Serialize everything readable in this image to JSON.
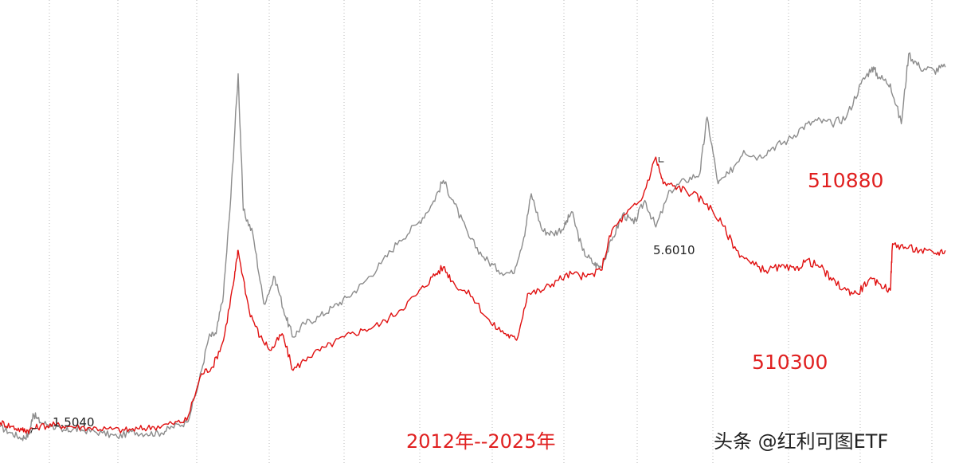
{
  "chart_data": {
    "type": "line",
    "x_range": [
      "2012",
      "2025"
    ],
    "grid": {
      "vertical_dotted": true,
      "horizontal": false
    },
    "series": [
      {
        "name": "510880",
        "color": "#8c8c8c",
        "points": [
          [
            2012.0,
            1.55
          ],
          [
            2012.15,
            1.46
          ],
          [
            2012.3,
            1.38
          ],
          [
            2012.4,
            1.44
          ],
          [
            2012.45,
            1.75
          ],
          [
            2012.55,
            1.62
          ],
          [
            2012.7,
            1.58
          ],
          [
            2012.85,
            1.48
          ],
          [
            2013.0,
            1.52
          ],
          [
            2013.15,
            1.5
          ],
          [
            2013.4,
            1.46
          ],
          [
            2013.6,
            1.4
          ],
          [
            2013.8,
            1.48
          ],
          [
            2014.0,
            1.45
          ],
          [
            2014.2,
            1.46
          ],
          [
            2014.35,
            1.55
          ],
          [
            2014.55,
            1.62
          ],
          [
            2014.7,
            2.15
          ],
          [
            2014.85,
            2.9
          ],
          [
            2014.95,
            2.95
          ],
          [
            2015.05,
            3.55
          ],
          [
            2015.15,
            5.0
          ],
          [
            2015.25,
            6.85
          ],
          [
            2015.32,
            4.8
          ],
          [
            2015.45,
            4.45
          ],
          [
            2015.6,
            3.4
          ],
          [
            2015.75,
            3.8
          ],
          [
            2015.9,
            3.2
          ],
          [
            2016.0,
            2.9
          ],
          [
            2016.15,
            3.1
          ],
          [
            2016.35,
            3.2
          ],
          [
            2016.55,
            3.35
          ],
          [
            2016.75,
            3.5
          ],
          [
            2016.95,
            3.7
          ],
          [
            2017.2,
            4.0
          ],
          [
            2017.45,
            4.35
          ],
          [
            2017.7,
            4.6
          ],
          [
            2017.9,
            4.9
          ],
          [
            2018.05,
            5.25
          ],
          [
            2018.2,
            4.9
          ],
          [
            2018.4,
            4.4
          ],
          [
            2018.6,
            4.1
          ],
          [
            2018.8,
            3.9
          ],
          [
            2019.0,
            3.85
          ],
          [
            2019.15,
            4.4
          ],
          [
            2019.25,
            5.05
          ],
          [
            2019.4,
            4.5
          ],
          [
            2019.55,
            4.45
          ],
          [
            2019.7,
            4.55
          ],
          [
            2019.8,
            4.78
          ],
          [
            2019.95,
            4.2
          ],
          [
            2020.1,
            4.0
          ],
          [
            2020.2,
            3.95
          ],
          [
            2020.35,
            4.35
          ],
          [
            2020.5,
            4.75
          ],
          [
            2020.65,
            4.6
          ],
          [
            2020.8,
            4.95
          ],
          [
            2020.95,
            4.55
          ],
          [
            2021.15,
            5.1
          ],
          [
            2021.35,
            5.25
          ],
          [
            2021.55,
            5.35
          ],
          [
            2021.65,
            6.2
          ],
          [
            2021.8,
            5.2
          ],
          [
            2021.95,
            5.35
          ],
          [
            2022.15,
            5.7
          ],
          [
            2022.35,
            5.6
          ],
          [
            2022.55,
            5.75
          ],
          [
            2022.75,
            5.85
          ],
          [
            2022.95,
            6.05
          ],
          [
            2023.15,
            6.15
          ],
          [
            2023.35,
            6.1
          ],
          [
            2023.55,
            6.2
          ],
          [
            2023.75,
            6.7
          ],
          [
            2023.9,
            6.95
          ],
          [
            2024.0,
            6.8
          ],
          [
            2024.15,
            6.7
          ],
          [
            2024.3,
            6.1
          ],
          [
            2024.4,
            7.15
          ],
          [
            2024.55,
            6.95
          ],
          [
            2024.75,
            6.9
          ],
          [
            2024.9,
            6.95
          ]
        ]
      },
      {
        "name": "510300",
        "color": "#e01010",
        "points": [
          [
            2012.0,
            1.62
          ],
          [
            2012.15,
            1.56
          ],
          [
            2012.3,
            1.5
          ],
          [
            2012.4,
            1.504
          ],
          [
            2012.55,
            1.56
          ],
          [
            2012.75,
            1.58
          ],
          [
            2012.95,
            1.56
          ],
          [
            2013.2,
            1.54
          ],
          [
            2013.45,
            1.52
          ],
          [
            2013.7,
            1.5
          ],
          [
            2013.9,
            1.52
          ],
          [
            2014.1,
            1.55
          ],
          [
            2014.35,
            1.6
          ],
          [
            2014.55,
            1.65
          ],
          [
            2014.75,
            2.35
          ],
          [
            2014.9,
            2.45
          ],
          [
            2015.05,
            2.85
          ],
          [
            2015.2,
            3.8
          ],
          [
            2015.25,
            4.2
          ],
          [
            2015.4,
            3.3
          ],
          [
            2015.55,
            2.9
          ],
          [
            2015.7,
            2.7
          ],
          [
            2015.85,
            2.95
          ],
          [
            2016.0,
            2.4
          ],
          [
            2016.2,
            2.6
          ],
          [
            2016.45,
            2.75
          ],
          [
            2016.7,
            2.9
          ],
          [
            2016.95,
            3.0
          ],
          [
            2017.2,
            3.1
          ],
          [
            2017.45,
            3.3
          ],
          [
            2017.7,
            3.55
          ],
          [
            2017.9,
            3.8
          ],
          [
            2018.05,
            3.95
          ],
          [
            2018.2,
            3.7
          ],
          [
            2018.45,
            3.5
          ],
          [
            2018.7,
            3.1
          ],
          [
            2018.9,
            2.95
          ],
          [
            2019.05,
            2.85
          ],
          [
            2019.2,
            3.55
          ],
          [
            2019.4,
            3.6
          ],
          [
            2019.6,
            3.75
          ],
          [
            2019.8,
            3.85
          ],
          [
            2020.0,
            3.8
          ],
          [
            2020.2,
            3.9
          ],
          [
            2020.35,
            4.5
          ],
          [
            2020.55,
            4.75
          ],
          [
            2020.75,
            4.95
          ],
          [
            2020.95,
            5.6
          ],
          [
            2021.05,
            5.2
          ],
          [
            2021.25,
            5.15
          ],
          [
            2021.45,
            5.05
          ],
          [
            2021.65,
            4.9
          ],
          [
            2021.85,
            4.6
          ],
          [
            2022.05,
            4.2
          ],
          [
            2022.25,
            4.0
          ],
          [
            2022.45,
            3.9
          ],
          [
            2022.65,
            3.95
          ],
          [
            2022.85,
            3.9
          ],
          [
            2023.0,
            4.05
          ],
          [
            2023.2,
            3.95
          ],
          [
            2023.35,
            3.75
          ],
          [
            2023.55,
            3.6
          ],
          [
            2023.7,
            3.55
          ],
          [
            2023.85,
            3.75
          ],
          [
            2024.0,
            3.7
          ],
          [
            2024.15,
            3.6
          ],
          [
            2024.18,
            4.3
          ],
          [
            2024.35,
            4.25
          ],
          [
            2024.55,
            4.2
          ],
          [
            2024.75,
            4.15
          ],
          [
            2024.9,
            4.2
          ]
        ]
      }
    ],
    "annotations": [
      {
        "text": "1.5040",
        "series": "510300",
        "x": 2012.4,
        "y": 1.504
      },
      {
        "text": "5.6010",
        "series": "510300",
        "x": 2020.95,
        "y": 5.601
      }
    ]
  },
  "labels": {
    "series_510880": "510880",
    "series_510300": "510300",
    "period": "2012年--2025年",
    "watermark": "头条 @红利可图ETF",
    "low_price": "1.5040",
    "high_price": "5.6010"
  }
}
